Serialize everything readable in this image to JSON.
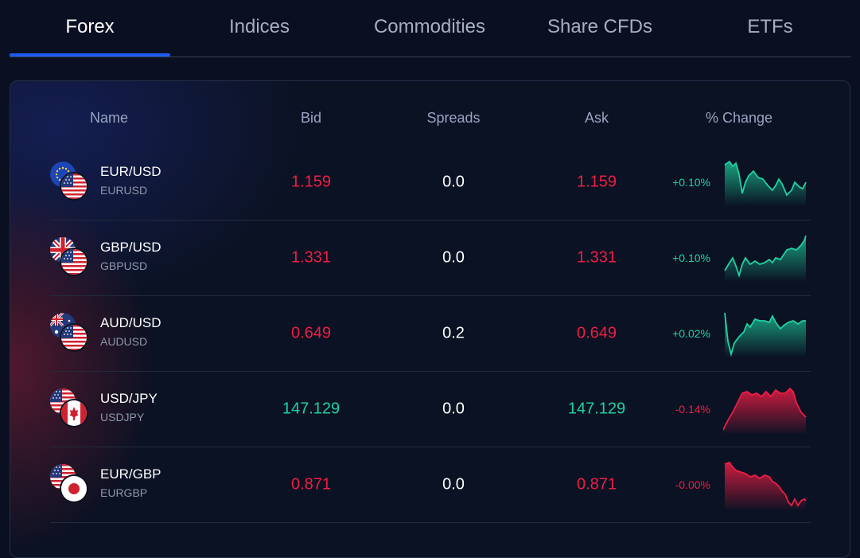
{
  "tabs": [
    {
      "label": "Forex",
      "active": true
    },
    {
      "label": "Indices",
      "active": false
    },
    {
      "label": "Commodities",
      "active": false
    },
    {
      "label": "Share CFDs",
      "active": false
    },
    {
      "label": "ETFs",
      "active": false
    }
  ],
  "columns": {
    "name": "Name",
    "bid": "Bid",
    "spreads": "Spreads",
    "ask": "Ask",
    "change": "% Change"
  },
  "colors": {
    "accent": "#1e5cf2",
    "up": "#1ed3a0",
    "down": "#ef1d45",
    "background": "#0a1022"
  },
  "rows": [
    {
      "symbol": "EUR/USD",
      "code": "EURUSD",
      "bid": "1.159",
      "spread": "0.0",
      "ask": "1.159",
      "change": "+0.10%",
      "direction": "up",
      "flags": [
        "eu-flag-icon",
        "us-flag-icon"
      ]
    },
    {
      "symbol": "GBP/USD",
      "code": "GBPUSD",
      "bid": "1.331",
      "spread": "0.0",
      "ask": "1.331",
      "change": "+0.10%",
      "direction": "up",
      "flags": [
        "uk-flag-icon",
        "us-flag-icon"
      ]
    },
    {
      "symbol": "AUD/USD",
      "code": "AUDUSD",
      "bid": "0.649",
      "spread": "0.2",
      "ask": "0.649",
      "change": "+0.02%",
      "direction": "up",
      "flags": [
        "au-flag-icon",
        "us-flag-icon"
      ]
    },
    {
      "symbol": "USD/JPY",
      "code": "USDJPY",
      "bid": "147.129",
      "spread": "0.0",
      "ask": "147.129",
      "change": "-0.14%",
      "direction": "down",
      "flags": [
        "us-flag-icon",
        "ca-flag-icon"
      ]
    },
    {
      "symbol": "EUR/GBP",
      "code": "EURGBP",
      "bid": "0.871",
      "spread": "0.0",
      "ask": "0.871",
      "change": "-0.00%",
      "direction": "down",
      "flags": [
        "us-flag-icon",
        "jp-flag-icon"
      ]
    }
  ]
}
